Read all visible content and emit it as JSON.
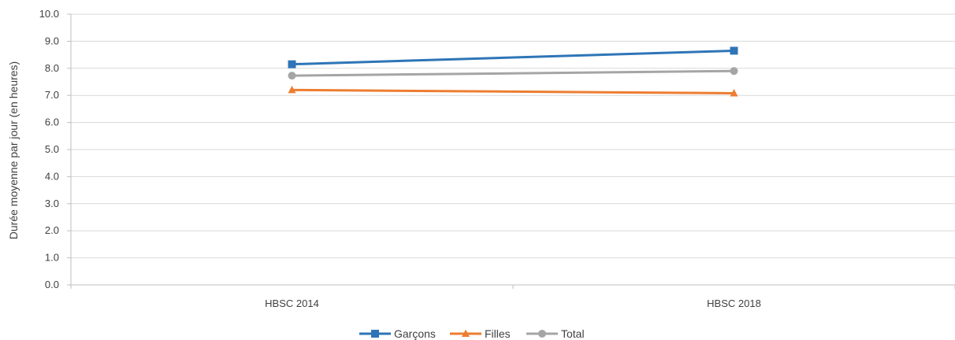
{
  "chart_data": {
    "type": "line",
    "title": "",
    "xlabel": "",
    "ylabel": "Durée moyenne par jour (en heures)",
    "categories": [
      "HBSC 2014",
      "HBSC 2018"
    ],
    "ylim": [
      0,
      10
    ],
    "y_ticks": [
      "0.0",
      "1.0",
      "2.0",
      "3.0",
      "4.0",
      "5.0",
      "6.0",
      "7.0",
      "8.0",
      "9.0",
      "10.0"
    ],
    "grid": true,
    "legend_position": "bottom",
    "series": [
      {
        "name": "Garçons",
        "values": [
          8.15,
          8.65
        ],
        "color": "#2e75b6",
        "marker": "square"
      },
      {
        "name": "Filles",
        "values": [
          7.2,
          7.08
        ],
        "color": "#ed7d31",
        "marker": "triangle"
      },
      {
        "name": "Total",
        "values": [
          7.73,
          7.9
        ],
        "color": "#a5a5a5",
        "marker": "circle"
      }
    ]
  }
}
